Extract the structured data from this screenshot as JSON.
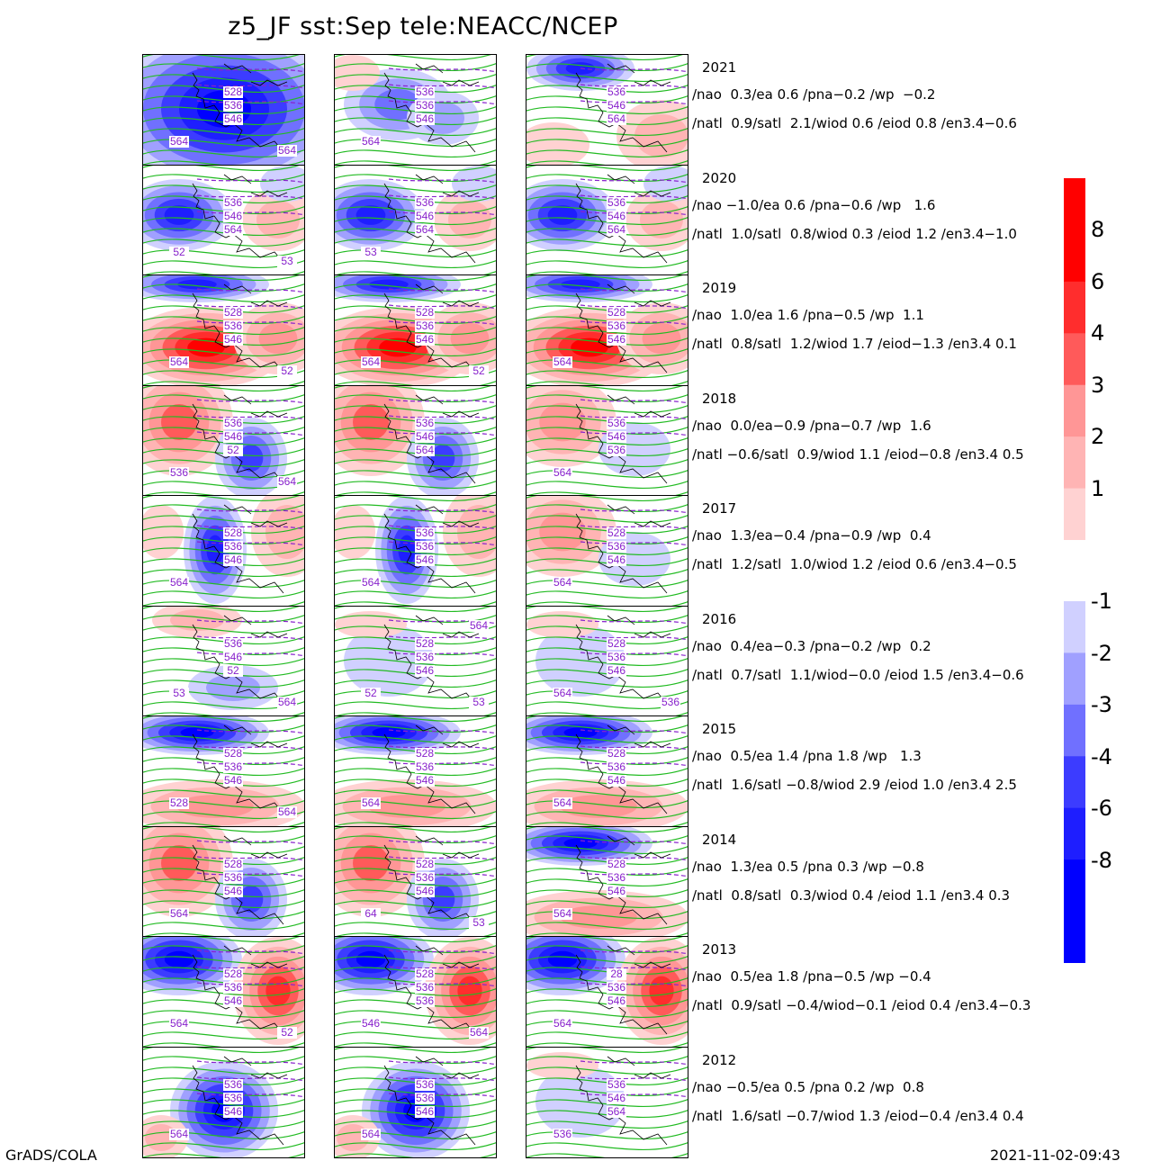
{
  "title": "z5_JF  sst:Sep  tele:NEACC/NCEP",
  "footer": {
    "left": "GrADS/COLA",
    "right": "2021-11-02-09:43"
  },
  "colors": {
    "pos": [
      "#ffd2d2",
      "#ffb4b4",
      "#ff9696",
      "#ff5a5a",
      "#ff2d2d",
      "#ff0000"
    ],
    "neg": [
      "#d0d0ff",
      "#a0a0ff",
      "#7070ff",
      "#3c3cff",
      "#1e1eff",
      "#0000ff"
    ],
    "contour": "#22bb22",
    "dashed": "#8822cc"
  },
  "colorbar_pos": {
    "labels": [
      "8",
      "6",
      "4",
      "3",
      "2",
      "1"
    ]
  },
  "colorbar_neg": {
    "labels": [
      "-1",
      "-2",
      "-3",
      "-4",
      "-6",
      "-8"
    ]
  },
  "chart_data": {
    "type": "heatmap",
    "description_levels": {
      "positive": [
        1,
        2,
        3,
        4,
        6,
        8
      ],
      "negative": [
        -1,
        -2,
        -3,
        -4,
        -6,
        -8
      ]
    },
    "rows": [
      {
        "year": "2021",
        "tele_line1": "/nao  0.3/ea 0.6 /pna−0.2 /wp  −0.2",
        "tele_line2": "/natl  0.9/satl  2.1/wiod 0.6 /eiod 0.8 /en3.4−0.6",
        "panels": [
          {
            "labels": [
              "528",
              "536",
              "546",
              "564",
              "564"
            ],
            "anom": "neg-strong"
          },
          {
            "labels": [
              "536",
              "536",
              "546",
              "564"
            ],
            "anom": "neg-mid"
          },
          {
            "labels": [
              "536",
              "546",
              "564"
            ],
            "anom": "neg-top"
          }
        ]
      },
      {
        "year": "2020",
        "tele_line1": "/nao −1.0/ea 0.6 /pna−0.6 /wp   1.6",
        "tele_line2": "/natl  1.0/satl  0.8/wiod 0.3 /eiod 1.2 /en3.4−1.0",
        "panels": [
          {
            "labels": [
              "536",
              "546",
              "564",
              "52",
              "53"
            ],
            "anom": "neg-west"
          },
          {
            "labels": [
              "536",
              "546",
              "564",
              "53"
            ],
            "anom": "neg-west"
          },
          {
            "labels": [
              "536",
              "546",
              "564"
            ],
            "anom": "neg-west"
          }
        ]
      },
      {
        "year": "2019",
        "tele_line1": "/nao  1.0/ea 1.6 /pna−0.5 /wp  1.1",
        "tele_line2": "/natl  0.8/satl  1.2/wiod 1.7 /eiod−1.3 /en3.4 0.1",
        "panels": [
          {
            "labels": [
              "528",
              "536",
              "546",
              "564",
              "52"
            ],
            "anom": "pos-strong"
          },
          {
            "labels": [
              "528",
              "536",
              "546",
              "564",
              "52"
            ],
            "anom": "pos-strong"
          },
          {
            "labels": [
              "528",
              "536",
              "546",
              "564"
            ],
            "anom": "pos-strong"
          }
        ]
      },
      {
        "year": "2018",
        "tele_line1": "/nao  0.0/ea−0.9 /pna−0.7 /wp  1.6",
        "tele_line2": "/natl −0.6/satl  0.9/wiod 1.1 /eiod−0.8 /en3.4 0.5",
        "panels": [
          {
            "labels": [
              "536",
              "546",
              "52",
              "536",
              "564"
            ],
            "anom": "pos-west-neg-east"
          },
          {
            "labels": [
              "536",
              "546",
              "564"
            ],
            "anom": "pos-west-neg-east"
          },
          {
            "labels": [
              "536",
              "546",
              "536",
              "564"
            ],
            "anom": "pos-west"
          }
        ]
      },
      {
        "year": "2017",
        "tele_line1": "/nao  1.3/ea−0.4 /pna−0.9 /wp  0.4",
        "tele_line2": "/natl  1.2/satl  1.0/wiod 1.2 /eiod 0.6 /en3.4−0.5",
        "panels": [
          {
            "labels": [
              "528",
              "536",
              "546",
              "564"
            ],
            "anom": "neg-center"
          },
          {
            "labels": [
              "536",
              "536",
              "546",
              "564"
            ],
            "anom": "neg-center"
          },
          {
            "labels": [
              "528",
              "536",
              "546",
              "564"
            ],
            "anom": "pos-west"
          }
        ]
      },
      {
        "year": "2016",
        "tele_line1": "/nao  0.4/ea−0.3 /pna−0.2 /wp  0.2",
        "tele_line2": "/natl  0.7/satl  1.1/wiod−0.0 /eiod 1.5 /en3.4−0.6",
        "panels": [
          {
            "labels": [
              "536",
              "546",
              "52",
              "53",
              "564"
            ],
            "anom": "weak"
          },
          {
            "labels": [
              "528",
              "536",
              "546",
              "52",
              "53",
              "564"
            ],
            "anom": "weak-neg"
          },
          {
            "labels": [
              "528",
              "536",
              "546",
              "564",
              "536"
            ],
            "anom": "weak-neg"
          }
        ]
      },
      {
        "year": "2015",
        "tele_line1": "/nao  0.5/ea 1.4 /pna 1.8 /wp   1.3",
        "tele_line2": "/natl  1.6/satl −0.8/wiod 2.9 /eiod 1.0 /en3.4 2.5",
        "panels": [
          {
            "labels": [
              "528",
              "536",
              "546",
              "528",
              "564"
            ],
            "anom": "neg-top-pos-bottom"
          },
          {
            "labels": [
              "528",
              "536",
              "546",
              "564"
            ],
            "anom": "neg-top-pos-bottom"
          },
          {
            "labels": [
              "528",
              "536",
              "546",
              "564"
            ],
            "anom": "neg-top-pos-bottom"
          }
        ]
      },
      {
        "year": "2014",
        "tele_line1": "/nao  1.3/ea 0.5 /pna 0.3 /wp −0.8",
        "tele_line2": "/natl  0.8/satl  0.3/wiod 0.4 /eiod 1.1 /en3.4 0.3",
        "panels": [
          {
            "labels": [
              "528",
              "536",
              "546",
              "564"
            ],
            "anom": "pos-west-neg-east"
          },
          {
            "labels": [
              "528",
              "536",
              "546",
              "64",
              "53"
            ],
            "anom": "pos-west-neg-east"
          },
          {
            "labels": [
              "528",
              "536",
              "546",
              "564"
            ],
            "anom": "neg-top-pos-bottom"
          }
        ]
      },
      {
        "year": "2013",
        "tele_line1": "/nao  0.5/ea 1.8 /pna−0.5 /wp −0.4",
        "tele_line2": "/natl  0.9/satl −0.4/wiod−0.1 /eiod 0.4 /en3.4−0.3",
        "panels": [
          {
            "labels": [
              "528",
              "536",
              "546",
              "564",
              "52"
            ],
            "anom": "neg-nw-pos-east"
          },
          {
            "labels": [
              "528",
              "536",
              "536",
              "546",
              "564"
            ],
            "anom": "neg-nw-pos-east"
          },
          {
            "labels": [
              "28",
              "536",
              "546",
              "564"
            ],
            "anom": "neg-nw-pos-east"
          }
        ]
      },
      {
        "year": "2012",
        "tele_line1": "/nao −0.5/ea 0.5 /pna 0.2 /wp  0.8",
        "tele_line2": "/natl  1.6/satl −0.7/wiod 1.3 /eiod−0.4 /en3.4 0.4",
        "panels": [
          {
            "labels": [
              "536",
              "536",
              "546",
              "564"
            ],
            "anom": "neg-blob"
          },
          {
            "labels": [
              "536",
              "536",
              "546",
              "564"
            ],
            "anom": "neg-blob"
          },
          {
            "labels": [
              "536",
              "546",
              "564",
              "536"
            ],
            "anom": "weak-neg"
          }
        ]
      }
    ]
  }
}
